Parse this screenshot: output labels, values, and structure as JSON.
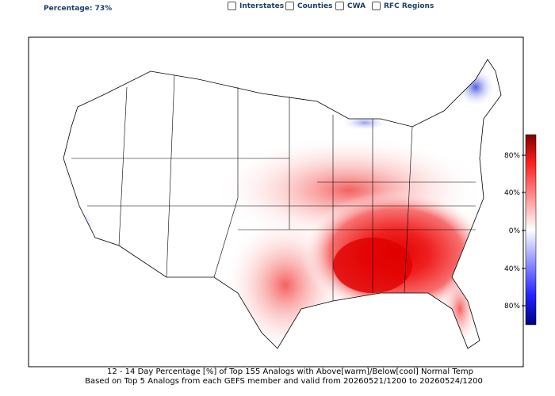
{
  "header": {
    "percentage": "Percentage: 73%",
    "options": [
      "Interstates",
      "Counties",
      "CWA",
      "RFC Regions"
    ]
  },
  "colorbar": {
    "ticks": [
      "80%",
      "40%",
      "0%",
      "40%",
      "80%"
    ]
  },
  "caption": [
    "12 - 14 Day  Percentage [%] of Top 155 Analogs with Above[warm]/Below[cool] Normal Temp",
    "Based on Top 5 Analogs from each GEFS member and valid from 20260521/1200 to 20260524/1200"
  ]
}
